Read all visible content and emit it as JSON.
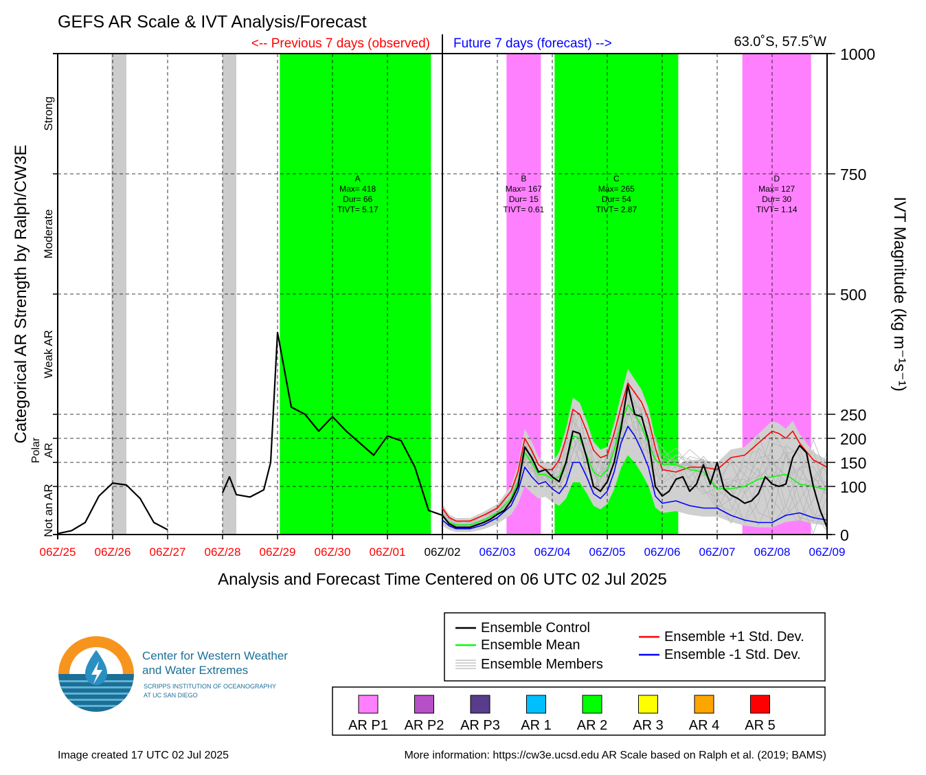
{
  "chart_data": {
    "type": "line",
    "title": "GEFS AR Scale & IVT Analysis/Forecast",
    "location": "63.0˚S, 57.5˚W",
    "past_label": "<-- Previous 7 days (observed)",
    "future_label": "Future 7 days (forecast) -->",
    "xlabel": "Analysis and Forecast Time Centered on 06 UTC 02 Jul 2025",
    "ylabel_left": "Categorical AR Strength by Ralph/CW3E",
    "ylabel_right": "IVT Magnitude (kg m⁻¹s⁻¹)",
    "x_range_hours": [
      -168,
      168
    ],
    "ylim": [
      0,
      1000
    ],
    "x_ticks": [
      {
        "label": "06Z/25",
        "h": -168,
        "color": "#ff0000"
      },
      {
        "label": "06Z/26",
        "h": -144,
        "color": "#ff0000"
      },
      {
        "label": "06Z/27",
        "h": -120,
        "color": "#ff0000"
      },
      {
        "label": "06Z/28",
        "h": -96,
        "color": "#ff0000"
      },
      {
        "label": "06Z/29",
        "h": -72,
        "color": "#ff0000"
      },
      {
        "label": "06Z/30",
        "h": -48,
        "color": "#ff0000"
      },
      {
        "label": "06Z/01",
        "h": -24,
        "color": "#ff0000"
      },
      {
        "label": "06Z/02",
        "h": 0,
        "color": "#000000"
      },
      {
        "label": "06Z/03",
        "h": 24,
        "color": "#0000ff"
      },
      {
        "label": "06Z/04",
        "h": 48,
        "color": "#0000ff"
      },
      {
        "label": "06Z/05",
        "h": 72,
        "color": "#0000ff"
      },
      {
        "label": "06Z/06",
        "h": 96,
        "color": "#0000ff"
      },
      {
        "label": "06Z/07",
        "h": 120,
        "color": "#0000ff"
      },
      {
        "label": "06Z/08",
        "h": 144,
        "color": "#0000ff"
      },
      {
        "label": "06Z/09",
        "h": 168,
        "color": "#0000ff"
      }
    ],
    "y_ticks": [
      0,
      100,
      150,
      200,
      250,
      500,
      750,
      1000
    ],
    "y_grid": [
      100,
      150,
      200,
      250,
      500,
      750
    ],
    "category_labels": [
      {
        "label": "Strong",
        "y": 875
      },
      {
        "label": "Moderate",
        "y": 625
      },
      {
        "label": "Weak AR",
        "y": 375
      },
      {
        "label": "Polar AR",
        "y": 175
      },
      {
        "label": "Not an AR",
        "y": 50
      }
    ],
    "shaded_bands": [
      {
        "start": -144.5,
        "end": -138,
        "color": "#cccccc"
      },
      {
        "start": -96,
        "end": -90,
        "color": "#cccccc"
      },
      {
        "start": -71,
        "end": -5,
        "color": "#00ff00"
      },
      {
        "start": 28,
        "end": 43,
        "color": "#ff80ff"
      },
      {
        "start": 49,
        "end": 103,
        "color": "#00ff00"
      },
      {
        "start": 131,
        "end": 161,
        "color": "#ff80ff"
      }
    ],
    "events": [
      {
        "name": "A",
        "max": "Max= 418",
        "dur": "Dur= 66",
        "tivt": "TIVT= 5.17",
        "x": -37
      },
      {
        "name": "B",
        "max": "Max= 167",
        "dur": "Dur= 15",
        "tivt": "TIVT= 0.61",
        "x": 35.5
      },
      {
        "name": "C",
        "max": "Max= 265",
        "dur": "Dur= 54",
        "tivt": "TIVT= 2.87",
        "x": 76
      },
      {
        "name": "D",
        "max": "Max= 127",
        "dur": "Dur= 30",
        "tivt": "TIVT= 1.14",
        "x": 146
      }
    ],
    "series": [
      {
        "name": "Ensemble Control",
        "color": "#000000",
        "segments": [
          [
            [
              -168,
              2
            ],
            [
              -162,
              8
            ],
            [
              -156,
              25
            ],
            [
              -150,
              80
            ],
            [
              -144,
              107
            ],
            [
              -138,
              103
            ],
            [
              -132,
              75
            ],
            [
              -126,
              25
            ],
            [
              -120,
              10
            ]
          ],
          [
            [
              -96,
              87
            ],
            [
              -93,
              120
            ],
            [
              -90,
              83
            ],
            [
              -84,
              78
            ],
            [
              -78,
              93
            ],
            [
              -75,
              150
            ],
            [
              -72,
              420
            ],
            [
              -66,
              265
            ],
            [
              -60,
              250
            ],
            [
              -54,
              215
            ],
            [
              -48,
              245
            ],
            [
              -42,
              215
            ],
            [
              -36,
              190
            ],
            [
              -30,
              165
            ],
            [
              -24,
              205
            ],
            [
              -18,
              195
            ],
            [
              -12,
              140
            ],
            [
              -6,
              50
            ],
            [
              0,
              40
            ],
            [
              3,
              22
            ],
            [
              6,
              15
            ],
            [
              12,
              15
            ],
            [
              18,
              25
            ],
            [
              21,
              32
            ],
            [
              24,
              42
            ],
            [
              27,
              50
            ],
            [
              30,
              70
            ],
            [
              33,
              100
            ],
            [
              36,
              182
            ],
            [
              39,
              160
            ],
            [
              42,
              130
            ],
            [
              45,
              135
            ],
            [
              48,
              120
            ],
            [
              51,
              110
            ],
            [
              54,
              150
            ],
            [
              57,
              215
            ],
            [
              60,
              210
            ],
            [
              63,
              160
            ],
            [
              66,
              100
            ],
            [
              69,
              90
            ],
            [
              72,
              110
            ],
            [
              75,
              150
            ],
            [
              78,
              220
            ],
            [
              81,
              310
            ],
            [
              84,
              250
            ],
            [
              87,
              245
            ],
            [
              90,
              195
            ],
            [
              93,
              100
            ],
            [
              96,
              80
            ],
            [
              99,
              90
            ],
            [
              102,
              115
            ],
            [
              105,
              120
            ],
            [
              108,
              90
            ],
            [
              111,
              105
            ],
            [
              114,
              145
            ],
            [
              117,
              105
            ],
            [
              120,
              150
            ],
            [
              123,
              95
            ],
            [
              126,
              82
            ],
            [
              129,
              75
            ],
            [
              132,
              65
            ],
            [
              135,
              70
            ],
            [
              138,
              85
            ],
            [
              141,
              120
            ],
            [
              144,
              105
            ],
            [
              147,
              100
            ],
            [
              150,
              105
            ],
            [
              153,
              160
            ],
            [
              156,
              185
            ],
            [
              159,
              170
            ],
            [
              162,
              100
            ],
            [
              165,
              50
            ],
            [
              168,
              15
            ]
          ]
        ]
      },
      {
        "name": "Ensemble Mean",
        "color": "#00ff00",
        "segments": [
          [
            [
              0,
              40
            ],
            [
              3,
              25
            ],
            [
              6,
              20
            ],
            [
              12,
              20
            ],
            [
              18,
              30
            ],
            [
              24,
              45
            ],
            [
              30,
              75
            ],
            [
              33,
              110
            ],
            [
              36,
              170
            ],
            [
              39,
              150
            ],
            [
              42,
              125
            ],
            [
              45,
              125
            ],
            [
              48,
              115
            ],
            [
              51,
              120
            ],
            [
              54,
              150
            ],
            [
              57,
              205
            ],
            [
              60,
              200
            ],
            [
              63,
              165
            ],
            [
              66,
              130
            ],
            [
              69,
              120
            ],
            [
              72,
              135
            ],
            [
              75,
              175
            ],
            [
              78,
              230
            ],
            [
              81,
              270
            ],
            [
              84,
              250
            ],
            [
              87,
              225
            ],
            [
              90,
              190
            ],
            [
              93,
              155
            ],
            [
              96,
              145
            ],
            [
              102,
              145
            ],
            [
              108,
              135
            ],
            [
              114,
              130
            ],
            [
              120,
              95
            ],
            [
              126,
              95
            ],
            [
              132,
              100
            ],
            [
              138,
              115
            ],
            [
              144,
              120
            ],
            [
              150,
              125
            ],
            [
              156,
              105
            ],
            [
              162,
              100
            ],
            [
              168,
              93
            ]
          ]
        ]
      },
      {
        "name": "Ensemble +1 Std. Dev.",
        "color": "#ff0000",
        "segments": [
          [
            [
              0,
              55
            ],
            [
              3,
              35
            ],
            [
              6,
              28
            ],
            [
              12,
              28
            ],
            [
              18,
              40
            ],
            [
              24,
              55
            ],
            [
              30,
              90
            ],
            [
              33,
              130
            ],
            [
              36,
              200
            ],
            [
              39,
              175
            ],
            [
              42,
              145
            ],
            [
              45,
              135
            ],
            [
              48,
              135
            ],
            [
              51,
              155
            ],
            [
              54,
              200
            ],
            [
              57,
              260
            ],
            [
              60,
              250
            ],
            [
              63,
              215
            ],
            [
              66,
              175
            ],
            [
              69,
              160
            ],
            [
              72,
              165
            ],
            [
              75,
              210
            ],
            [
              78,
              265
            ],
            [
              81,
              315
            ],
            [
              84,
              295
            ],
            [
              87,
              275
            ],
            [
              90,
              240
            ],
            [
              93,
              180
            ],
            [
              96,
              135
            ],
            [
              102,
              130
            ],
            [
              108,
              140
            ],
            [
              114,
              140
            ],
            [
              120,
              135
            ],
            [
              126,
              160
            ],
            [
              132,
              165
            ],
            [
              138,
              190
            ],
            [
              144,
              215
            ],
            [
              147,
              210
            ],
            [
              150,
              200
            ],
            [
              153,
              215
            ],
            [
              156,
              190
            ],
            [
              162,
              155
            ],
            [
              168,
              140
            ]
          ]
        ]
      },
      {
        "name": "Ensemble -1 Std. Dev.",
        "color": "#0000ff",
        "segments": [
          [
            [
              0,
              30
            ],
            [
              3,
              18
            ],
            [
              6,
              12
            ],
            [
              12,
              12
            ],
            [
              18,
              20
            ],
            [
              24,
              35
            ],
            [
              30,
              60
            ],
            [
              33,
              90
            ],
            [
              36,
              140
            ],
            [
              39,
              120
            ],
            [
              42,
              105
            ],
            [
              45,
              110
            ],
            [
              48,
              95
            ],
            [
              51,
              85
            ],
            [
              54,
              105
            ],
            [
              57,
              150
            ],
            [
              60,
              150
            ],
            [
              63,
              120
            ],
            [
              66,
              85
            ],
            [
              69,
              75
            ],
            [
              72,
              90
            ],
            [
              75,
              130
            ],
            [
              78,
              190
            ],
            [
              81,
              225
            ],
            [
              84,
              205
            ],
            [
              87,
              175
            ],
            [
              90,
              140
            ],
            [
              93,
              80
            ],
            [
              96,
              65
            ],
            [
              102,
              70
            ],
            [
              108,
              60
            ],
            [
              114,
              55
            ],
            [
              120,
              55
            ],
            [
              126,
              40
            ],
            [
              132,
              30
            ],
            [
              138,
              25
            ],
            [
              144,
              25
            ],
            [
              150,
              40
            ],
            [
              156,
              45
            ],
            [
              162,
              35
            ],
            [
              168,
              30
            ]
          ]
        ]
      }
    ]
  },
  "legend": {
    "lines": [
      {
        "label": "Ensemble Control",
        "color": "#000000"
      },
      {
        "label": "Ensemble Mean",
        "color": "#00ff00"
      },
      {
        "label": "Ensemble Members",
        "color": "#aaaaaa"
      },
      {
        "label": "Ensemble +1 Std. Dev.",
        "color": "#ff0000"
      },
      {
        "label": "Ensemble -1 Std. Dev.",
        "color": "#0000ff"
      }
    ],
    "categories": [
      {
        "label": "AR P1",
        "color": "#ff80ff"
      },
      {
        "label": "AR P2",
        "color": "#b64fc8"
      },
      {
        "label": "AR P3",
        "color": "#573d8b"
      },
      {
        "label": "AR 1",
        "color": "#00bfff"
      },
      {
        "label": "AR 2",
        "color": "#00ff00"
      },
      {
        "label": "AR 3",
        "color": "#ffff00"
      },
      {
        "label": "AR 4",
        "color": "#ffa500"
      },
      {
        "label": "AR 5",
        "color": "#ff0000"
      }
    ]
  },
  "logo": {
    "line1": "Center for Western Weather",
    "line2": "and Water Extremes",
    "line3": "SCRIPPS INSTITUTION OF OCEANOGRAPHY",
    "line4": "AT UC SAN DIEGO"
  },
  "footer": {
    "created": "Image created 17 UTC 02 Jul 2025",
    "info": "More information: https://cw3e.ucsd.edu AR Scale based on Ralph et al. (2019; BAMS)"
  }
}
